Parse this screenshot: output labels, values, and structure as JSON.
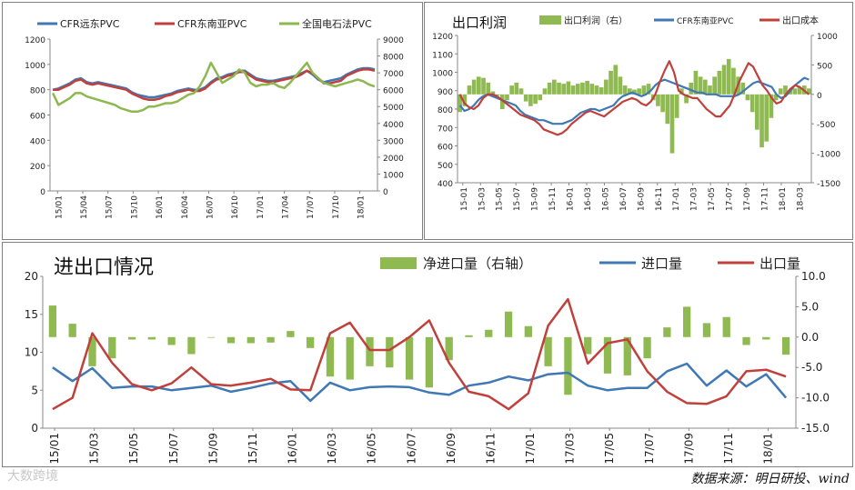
{
  "source_text": "数据来源：明日研投、wind",
  "watermark": "大数跨境",
  "colors": {
    "blue": "#3f78b4",
    "red": "#c0403c",
    "green": "#8cb84f",
    "green_bar": "#8fba52"
  },
  "chart_data": [
    {
      "type": "line",
      "title": "",
      "legend": [
        "CFR远东PVC",
        "CFR东南亚PVC",
        "全国电石法PVC"
      ],
      "x_labels": [
        "15/01",
        "15/04",
        "15/07",
        "15/10",
        "16/01",
        "16/04",
        "16/07",
        "16/10",
        "17/01",
        "17/04",
        "17/07",
        "17/10",
        "18/01"
      ],
      "y_left_range": [
        0,
        1200
      ],
      "y_left_ticks": [
        "0",
        "200",
        "400",
        "600",
        "800",
        "1000",
        "1200"
      ],
      "y_right_range": [
        0,
        9000
      ],
      "y_right_ticks": [
        "0",
        "1000",
        "2000",
        "3000",
        "4000",
        "5000",
        "6000",
        "7000",
        "8000",
        "9000"
      ],
      "series": [
        {
          "name": "CFR远东PVC",
          "axis": "left",
          "color": "#3f78b4",
          "values": [
            800,
            810,
            830,
            850,
            880,
            890,
            860,
            850,
            860,
            850,
            840,
            830,
            820,
            810,
            780,
            760,
            750,
            740,
            740,
            750,
            760,
            770,
            790,
            800,
            810,
            800,
            800,
            820,
            860,
            890,
            900,
            920,
            930,
            950,
            950,
            920,
            890,
            880,
            870,
            870,
            880,
            890,
            900,
            910,
            930,
            950,
            920,
            880,
            860,
            870,
            880,
            890,
            920,
            940,
            960,
            970,
            970,
            960
          ]
        },
        {
          "name": "CFR东南亚PVC",
          "axis": "left",
          "color": "#c0403c",
          "values": [
            800,
            800,
            820,
            840,
            870,
            880,
            850,
            840,
            850,
            840,
            830,
            820,
            810,
            800,
            770,
            750,
            730,
            720,
            720,
            730,
            750,
            760,
            780,
            790,
            800,
            790,
            790,
            810,
            850,
            880,
            890,
            910,
            920,
            940,
            940,
            910,
            880,
            870,
            860,
            860,
            870,
            880,
            890,
            900,
            920,
            950,
            930,
            890,
            850,
            850,
            860,
            870,
            910,
            930,
            950,
            960,
            960,
            950
          ]
        },
        {
          "name": "全国电石法PVC",
          "axis": "right",
          "color": "#8cb84f",
          "values": [
            5800,
            5100,
            5300,
            5500,
            5800,
            5800,
            5600,
            5500,
            5400,
            5300,
            5200,
            5100,
            4900,
            4800,
            4700,
            4700,
            4800,
            5000,
            5000,
            5100,
            5200,
            5200,
            5300,
            5500,
            5700,
            5800,
            6200,
            6800,
            7600,
            7000,
            6400,
            6600,
            6800,
            7200,
            7000,
            6400,
            6200,
            6300,
            6300,
            6400,
            6200,
            6100,
            6400,
            6800,
            7200,
            7600,
            7000,
            6700,
            6400,
            6300,
            6200,
            6300,
            6400,
            6500,
            6600,
            6500,
            6300,
            6200
          ]
        }
      ]
    },
    {
      "type": "bar+line",
      "title": "出口利润",
      "legend": [
        "出口利润（右）",
        "CFR东南亚PVC",
        "出口成本"
      ],
      "x_labels": [
        "15-01",
        "15-03",
        "15-05",
        "15-07",
        "15-09",
        "15-11",
        "16-01",
        "16-03",
        "16-05",
        "16-07",
        "16-09",
        "16-11",
        "17-01",
        "17-03",
        "17-05",
        "17-07",
        "17-09",
        "17-11",
        "18-01",
        "18-03"
      ],
      "y_left_range": [
        400,
        1200
      ],
      "y_left_ticks": [
        "400",
        "500",
        "600",
        "700",
        "800",
        "900",
        "1000",
        "1100",
        "1200"
      ],
      "y_right_range": [
        -1500,
        1000
      ],
      "y_right_ticks": [
        "-1500",
        "-1000",
        "-500",
        "0",
        "500",
        "1000"
      ],
      "series": [
        {
          "name": "出口利润（右）",
          "kind": "bar",
          "axis": "right",
          "color": "#8fba52",
          "values": [
            -300,
            -200,
            150,
            250,
            300,
            280,
            200,
            50,
            -20,
            -250,
            -100,
            150,
            200,
            100,
            -120,
            -200,
            -160,
            -100,
            100,
            200,
            250,
            200,
            180,
            220,
            150,
            180,
            200,
            230,
            180,
            150,
            120,
            250,
            400,
            500,
            300,
            150,
            100,
            80,
            100,
            150,
            180,
            -100,
            -200,
            -300,
            -500,
            -1000,
            -400,
            100,
            -150,
            200,
            400,
            300,
            250,
            150,
            300,
            400,
            500,
            600,
            450,
            300,
            200,
            -100,
            -300,
            -600,
            -900,
            -800,
            -400,
            -100,
            100,
            150,
            80,
            100,
            120,
            150,
            100
          ]
        },
        {
          "name": "CFR东南亚PVC",
          "kind": "line",
          "axis": "left",
          "color": "#3f78b4",
          "values": [
            820,
            790,
            800,
            820,
            850,
            870,
            880,
            870,
            860,
            850,
            840,
            830,
            820,
            790,
            770,
            760,
            750,
            740,
            740,
            730,
            720,
            720,
            720,
            730,
            740,
            760,
            780,
            790,
            800,
            800,
            790,
            800,
            810,
            820,
            850,
            870,
            880,
            890,
            880,
            870,
            880,
            900,
            930,
            950,
            960,
            950,
            940,
            930,
            920,
            910,
            900,
            890,
            890,
            880,
            880,
            880,
            870,
            870,
            870,
            870,
            880,
            900,
            920,
            940,
            950,
            940,
            930,
            920,
            880,
            860,
            870,
            900,
            930,
            950,
            970,
            960
          ]
        },
        {
          "name": "出口成本",
          "kind": "line",
          "axis": "left",
          "color": "#c0403c",
          "values": [
            880,
            830,
            810,
            800,
            820,
            860,
            880,
            880,
            870,
            850,
            830,
            810,
            790,
            770,
            760,
            750,
            740,
            720,
            690,
            680,
            670,
            660,
            670,
            690,
            720,
            740,
            760,
            780,
            790,
            780,
            770,
            760,
            780,
            800,
            820,
            840,
            850,
            860,
            850,
            830,
            820,
            840,
            880,
            950,
            1010,
            1060,
            1000,
            900,
            880,
            870,
            860,
            860,
            830,
            800,
            780,
            760,
            760,
            790,
            820,
            880,
            950,
            1000,
            1050,
            1030,
            980,
            930,
            900,
            860,
            830,
            840,
            880,
            910,
            930,
            920,
            900,
            880
          ]
        }
      ]
    },
    {
      "type": "bar+line",
      "title": "进出口情况",
      "legend": [
        "净进口量（右轴）",
        "进口量",
        "出口量"
      ],
      "x_labels": [
        "15/01",
        "15/03",
        "15/05",
        "15/07",
        "15/09",
        "15/11",
        "16/01",
        "16/03",
        "16/05",
        "16/07",
        "16/09",
        "16/11",
        "17/01",
        "17/03",
        "17/05",
        "17/07",
        "17/09",
        "17/11",
        "18/01"
      ],
      "y_left_range": [
        0,
        20
      ],
      "y_left_ticks": [
        "0",
        "5",
        "10",
        "15",
        "20"
      ],
      "y_right_range": [
        -15,
        10
      ],
      "y_right_ticks": [
        "-15.0",
        "-10.0",
        "-5.0",
        "0.0",
        "5.0",
        "10.0"
      ],
      "series": [
        {
          "name": "净进口量（右轴）",
          "kind": "bar",
          "axis": "right",
          "color": "#8fba52",
          "values": [
            5.2,
            2.2,
            -4.8,
            -3.5,
            -0.4,
            -0.4,
            -1.3,
            -2.8,
            -0.1,
            -1.0,
            -1.0,
            -0.9,
            1.0,
            -1.8,
            -6.5,
            -7.0,
            -4.8,
            -5.0,
            -7.0,
            -8.3,
            -3.8,
            0.3,
            1.2,
            4.2,
            1.8,
            -4.8,
            -9.5,
            -2.8,
            -6.0,
            -6.3,
            -3.5,
            1.6,
            5.0,
            2.3,
            3.3,
            -1.3,
            -0.4,
            -2.9
          ]
        },
        {
          "name": "进口量",
          "kind": "line",
          "axis": "left",
          "color": "#3f78b4",
          "values": [
            8.0,
            6.2,
            7.9,
            5.3,
            5.5,
            5.5,
            5.0,
            5.3,
            5.6,
            4.8,
            5.3,
            5.9,
            6.2,
            3.6,
            6.0,
            5.0,
            5.4,
            5.5,
            5.4,
            4.7,
            4.4,
            5.6,
            6.0,
            6.8,
            6.3,
            7.1,
            7.3,
            5.6,
            5.0,
            5.3,
            5.3,
            7.5,
            8.5,
            5.6,
            7.6,
            5.5,
            7.1,
            4.0
          ]
        },
        {
          "name": "出口量",
          "kind": "line",
          "axis": "left",
          "color": "#c0403c",
          "values": [
            2.5,
            4.0,
            12.5,
            8.6,
            5.8,
            5.0,
            5.9,
            8.0,
            5.8,
            5.6,
            6.0,
            6.5,
            5.1,
            5.0,
            12.5,
            13.9,
            10.3,
            10.3,
            12.0,
            14.2,
            8.6,
            4.8,
            4.2,
            2.5,
            4.6,
            13.5,
            17.0,
            8.5,
            11.2,
            11.7,
            7.5,
            4.8,
            3.3,
            3.2,
            4.2,
            7.5,
            7.7,
            6.8
          ]
        }
      ]
    }
  ]
}
